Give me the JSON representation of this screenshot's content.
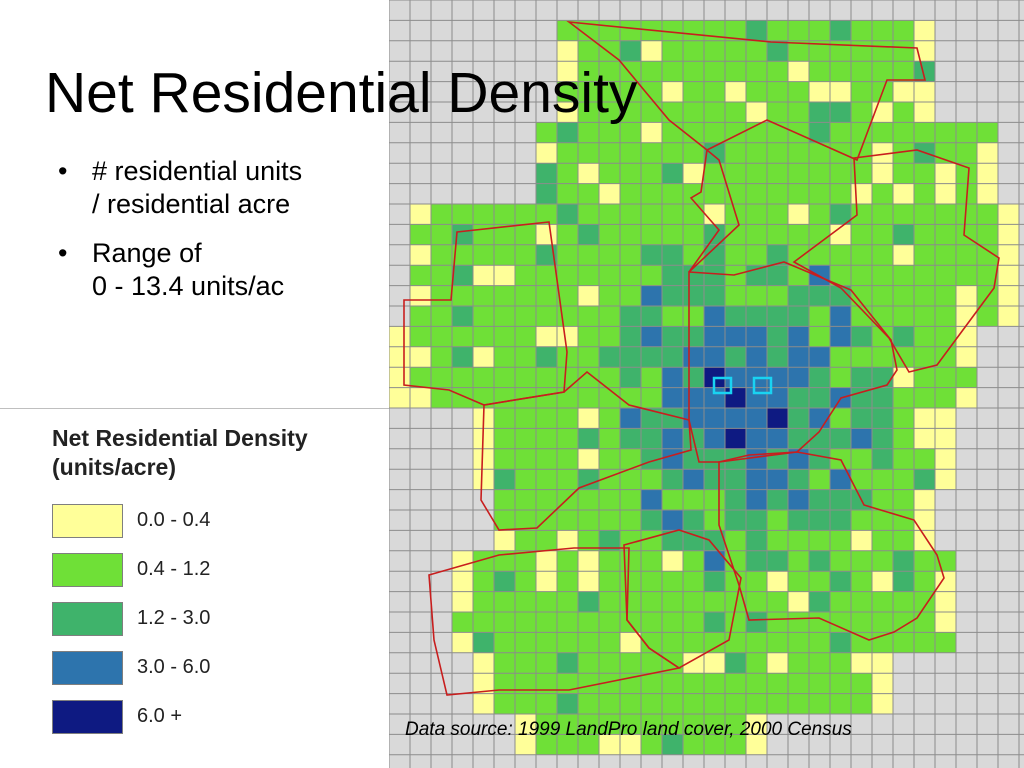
{
  "slide": {
    "title": "Net Residential Density",
    "bullets": [
      {
        "lines": [
          "# residential units",
          "/ residential acre"
        ]
      },
      {
        "lines": [
          "Range of",
          "0 - 13.4 units/ac"
        ]
      }
    ],
    "source": "Data source: 1999 LandPro land cover, 2000 Census"
  },
  "legend": {
    "title_lines": [
      "Net Residential Density",
      "(units/acre)"
    ],
    "items": [
      {
        "label": "0.0 - 0.4",
        "color": "#ffff99"
      },
      {
        "label": "0.4 - 1.2",
        "color": "#6fe037"
      },
      {
        "label": "1.2 - 3.0",
        "color": "#3fb36b"
      },
      {
        "label": "3.0 - 6.0",
        "color": "#2d74ad"
      },
      {
        "label": "6.0 +",
        "color": "#0e1a82"
      }
    ]
  },
  "map": {
    "background": "#d9d9d9",
    "grid_color": "#8c8c8c",
    "boundary_color": "#c81e1e",
    "highlight_color": "#19d3f2",
    "density_classes": [
      "0.0 - 0.4",
      "0.4 - 1.2",
      "1.2 - 3.0",
      "3.0 - 6.0",
      "6.0 +"
    ]
  }
}
